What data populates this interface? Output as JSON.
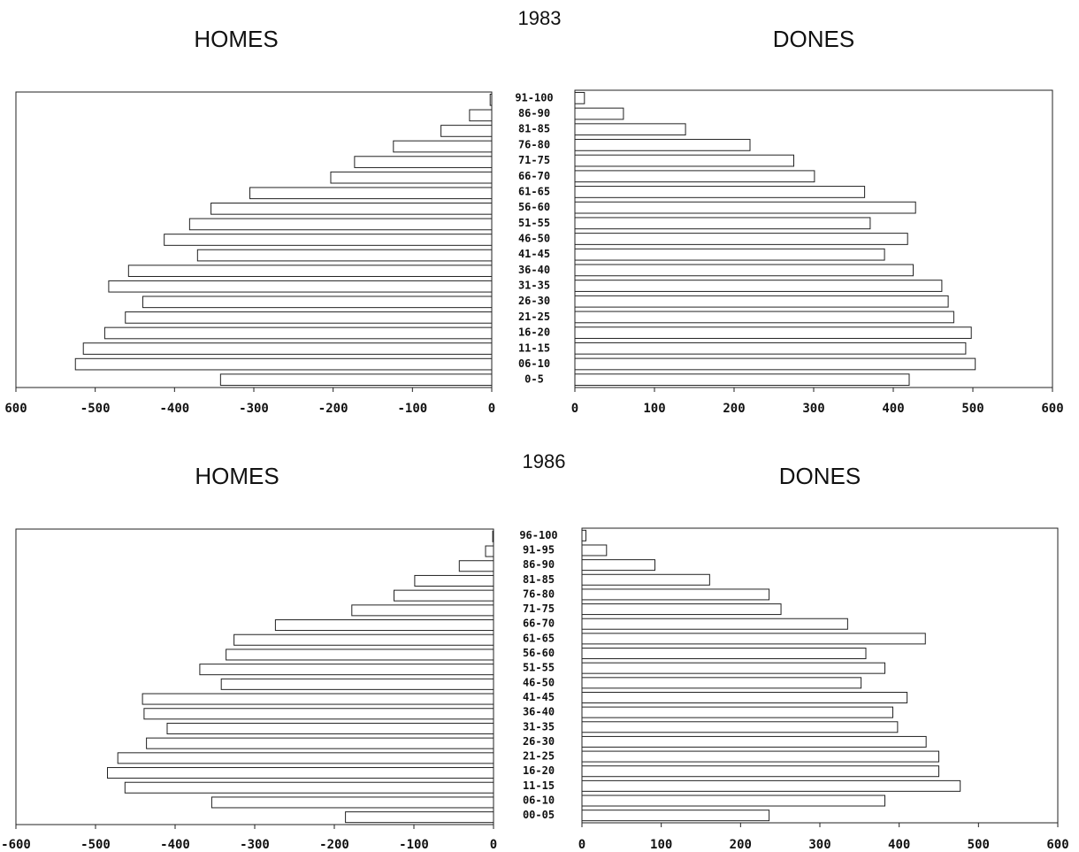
{
  "chart_data": [
    {
      "type": "pyramid",
      "title": "1983",
      "categories": [
        "0-5",
        "06-10",
        "11-15",
        "16-20",
        "21-25",
        "26-30",
        "31-35",
        "36-40",
        "41-45",
        "46-50",
        "51-55",
        "56-60",
        "61-65",
        "66-70",
        "71-75",
        "76-80",
        "81-85",
        "86-90",
        "91-100"
      ],
      "series": [
        {
          "name": "HOMES",
          "color": "#ffffff",
          "values": [
            -342,
            -525,
            -515,
            -488,
            -462,
            -440,
            -483,
            -458,
            -371,
            -413,
            -381,
            -354,
            -305,
            -203,
            -173,
            -124,
            -64,
            -28,
            -2
          ],
          "xlim": [
            -600,
            0
          ],
          "xticks": [
            {
              "value": -600,
              "label": "600"
            },
            -500,
            -400,
            -300,
            -200,
            -100,
            0
          ]
        },
        {
          "name": "DONES",
          "color": "#ffffff",
          "values": [
            420,
            503,
            491,
            498,
            476,
            469,
            461,
            425,
            389,
            418,
            371,
            428,
            364,
            301,
            275,
            220,
            139,
            61,
            12
          ],
          "xlim": [
            0,
            600
          ],
          "xticks": [
            0,
            100,
            200,
            300,
            400,
            500,
            600
          ]
        }
      ]
    },
    {
      "type": "pyramid",
      "title": "1986",
      "categories": [
        "00-05",
        "06-10",
        "11-15",
        "16-20",
        "21-25",
        "26-30",
        "31-35",
        "36-40",
        "41-45",
        "46-50",
        "51-55",
        "56-60",
        "61-65",
        "66-70",
        "71-75",
        "76-80",
        "81-85",
        "86-90",
        "91-95",
        "96-100"
      ],
      "series": [
        {
          "name": "HOMES",
          "color": "#ffffff",
          "values": [
            -186,
            -354,
            -463,
            -485,
            -472,
            -436,
            -410,
            -439,
            -441,
            -342,
            -369,
            -336,
            -326,
            -274,
            -178,
            -125,
            -99,
            -43,
            -10,
            -1
          ],
          "xlim": [
            -600,
            0
          ],
          "xticks": [
            -600,
            -500,
            -400,
            -300,
            -200,
            -100,
            0
          ]
        },
        {
          "name": "DONES",
          "color": "#ffffff",
          "values": [
            236,
            382,
            477,
            450,
            450,
            434,
            398,
            392,
            410,
            352,
            382,
            358,
            433,
            335,
            251,
            236,
            161,
            92,
            31,
            5
          ],
          "xlim": [
            0,
            600
          ],
          "xticks": [
            0,
            100,
            200,
            300,
            400,
            500,
            600
          ]
        }
      ]
    }
  ]
}
